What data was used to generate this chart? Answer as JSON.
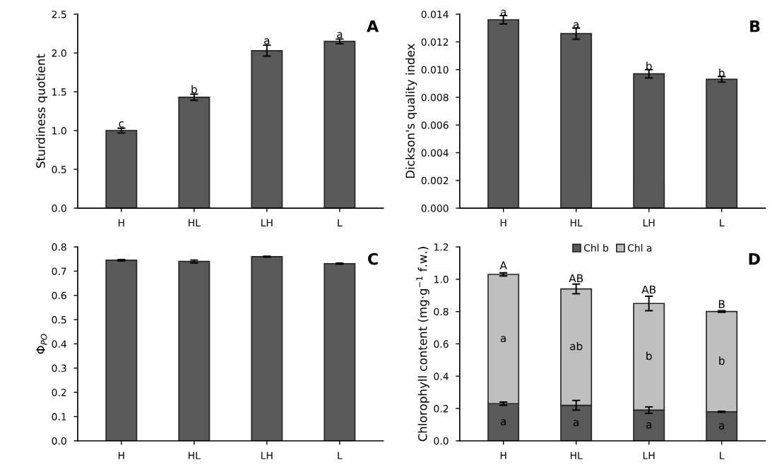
{
  "chart_data": [
    {
      "type": "bar",
      "ylabel": "Sturdiness quotient",
      "categories": [
        "H",
        "HL",
        "LH",
        "L"
      ],
      "ylim": [
        0,
        2.5
      ],
      "yticks": [
        {
          "value": 0,
          "label": "0.0"
        },
        0.5,
        {
          "value": 1,
          "label": "1.0"
        },
        1.5,
        {
          "value": 2,
          "label": "2.0"
        },
        2.5
      ],
      "legend": false,
      "grid": false,
      "series": [
        {
          "color": "#595959",
          "values": [
            1.0,
            1.43,
            2.03,
            2.15
          ],
          "errors": [
            0.03,
            0.04,
            0.07,
            0.03
          ]
        }
      ],
      "annotations": [
        "A",
        {
          "text": "c",
          "x": "H",
          "y": 1.08
        },
        {
          "text": "b",
          "x": "HL",
          "y": 1.52
        },
        {
          "text": "a",
          "x": "LH",
          "y": 2.15
        },
        {
          "text": "a",
          "x": "L",
          "y": 2.23
        }
      ]
    },
    {
      "type": "bar",
      "ylabel": "Dickson's quality index",
      "categories": [
        "H",
        "HL",
        "LH",
        "L"
      ],
      "ylim": [
        0,
        0.014
      ],
      "yticks": [
        {
          "value": 0,
          "label": "0.000"
        },
        {
          "value": 0.002,
          "label": "0.002"
        },
        {
          "value": 0.004,
          "label": "0.004"
        },
        {
          "value": 0.006,
          "label": "0.006"
        },
        {
          "value": 0.008,
          "label": "0.008"
        },
        {
          "value": 0.01,
          "label": "0.010"
        },
        {
          "value": 0.012,
          "label": "0.012"
        },
        {
          "value": 0.014,
          "label": "0.014"
        }
      ],
      "legend": false,
      "grid": false,
      "series": [
        {
          "color": "#595959",
          "values": [
            0.0136,
            0.0126,
            0.0097,
            0.0093
          ],
          "errors": [
            0.0003,
            0.0004,
            0.0003,
            0.0002
          ]
        }
      ],
      "annotations": [
        "B",
        {
          "text": "a",
          "x": "H",
          "y": 0.0141
        },
        {
          "text": "a",
          "x": "HL",
          "y": 0.0132
        },
        {
          "text": "b",
          "x": "LH",
          "y": 0.0102
        },
        {
          "text": "b",
          "x": "L",
          "y": 0.0097
        }
      ]
    },
    {
      "type": "bar",
      "ylabel": "Φ$_{PO}$",
      "categories": [
        "H",
        "HL",
        "LH",
        "L"
      ],
      "ylim": [
        0,
        0.8
      ],
      "yticks": [
        {
          "value": 0,
          "label": "0.0"
        },
        0.1,
        0.2,
        0.3,
        0.4,
        0.5,
        0.6,
        0.7,
        0.8
      ],
      "legend": false,
      "grid": false,
      "series": [
        {
          "color": "#595959",
          "values": [
            0.745,
            0.74,
            0.76,
            0.731
          ],
          "errors": [
            0.003,
            0.006,
            0.002,
            0.002
          ]
        }
      ],
      "annotations": [
        "C"
      ]
    },
    {
      "type": "bar",
      "stacked": true,
      "ylabel": "Chlorophyll content (mg·g$^{−1}$ f.w.)",
      "categories": [
        "H",
        "HL",
        "LH",
        "L"
      ],
      "ylim": [
        0,
        1.2
      ],
      "yticks": [
        {
          "value": 0,
          "label": "0.0"
        },
        0.2,
        0.4,
        0.6,
        0.8,
        {
          "value": 1,
          "label": "1.0"
        },
        1.2
      ],
      "legend": "top",
      "grid": false,
      "series": [
        {
          "name": "Chl b",
          "color": "#595959",
          "values": [
            0.23,
            0.22,
            0.19,
            0.18
          ],
          "errors": [
            0.01,
            0.03,
            0.02,
            0.003
          ],
          "value_labels": [
            "a",
            "a",
            "a",
            "a"
          ]
        },
        {
          "name": "Chl a",
          "color": "#bfbfbf",
          "values": [
            0.8,
            0.72,
            0.66,
            0.62
          ],
          "errors": [
            0.01,
            0.03,
            0.045,
            0.005
          ],
          "value_labels": [
            "a",
            "ab",
            "b",
            "b"
          ]
        }
      ],
      "annotations": [
        "D",
        {
          "text": "A",
          "x": "H",
          "y": 1.08
        },
        {
          "text": "AB",
          "x": "HL",
          "y": 1.0
        },
        {
          "text": "AB",
          "x": "LH",
          "y": 0.93
        },
        {
          "text": "B",
          "x": "L",
          "y": 0.84
        }
      ]
    }
  ]
}
